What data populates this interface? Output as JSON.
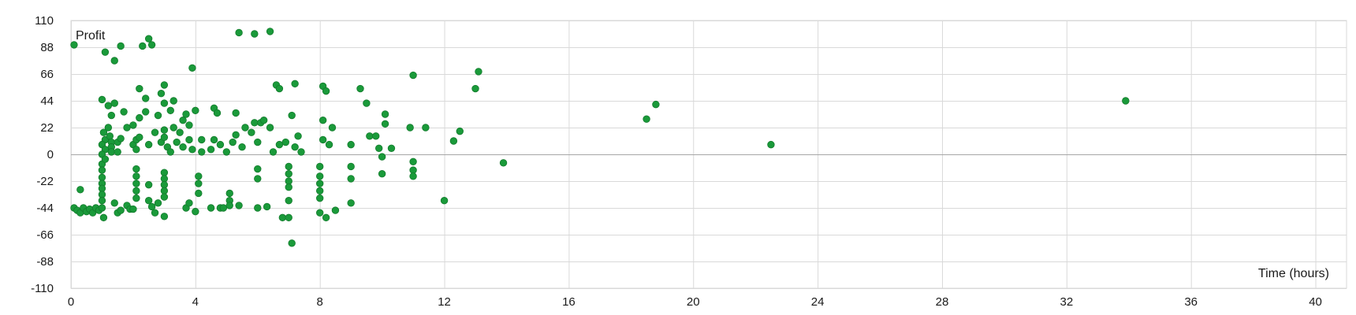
{
  "chart_data": {
    "type": "scatter",
    "xlabel": "Time (hours)",
    "ylabel": "Profit",
    "xlim": [
      0,
      41
    ],
    "ylim": [
      -110,
      110
    ],
    "x_ticks": [
      0,
      4,
      8,
      12,
      16,
      20,
      24,
      28,
      32,
      36,
      40
    ],
    "y_ticks": [
      -110,
      -88,
      -66,
      -44,
      -22,
      0,
      22,
      44,
      66,
      88,
      110
    ],
    "grid": true,
    "colors": {
      "marker": "#1a9a3a",
      "grid": "#d9d9d9",
      "zero_line": "#a6a6a6"
    },
    "series": [
      {
        "points": [
          [
            0.1,
            90
          ],
          [
            1.1,
            84
          ],
          [
            1.4,
            77
          ],
          [
            1.6,
            89
          ],
          [
            2.3,
            89
          ],
          [
            2.5,
            95
          ],
          [
            2.6,
            90
          ],
          [
            5.4,
            100
          ],
          [
            5.9,
            99
          ],
          [
            6.4,
            101
          ],
          [
            3.9,
            71
          ],
          [
            0.3,
            -29
          ],
          [
            0.1,
            -44
          ],
          [
            0.2,
            -46
          ],
          [
            0.3,
            -48
          ],
          [
            0.4,
            -44
          ],
          [
            0.5,
            -47
          ],
          [
            0.6,
            -45
          ],
          [
            0.7,
            -48
          ],
          [
            0.8,
            -44
          ],
          [
            0.9,
            -46
          ],
          [
            1.0,
            -44
          ],
          [
            1.05,
            -52
          ],
          [
            1.0,
            -8
          ],
          [
            1.0,
            -13
          ],
          [
            1.0,
            -19
          ],
          [
            1.0,
            -24
          ],
          [
            1.0,
            -28
          ],
          [
            1.0,
            -33
          ],
          [
            1.0,
            -38
          ],
          [
            1.0,
            45
          ],
          [
            1.05,
            18
          ],
          [
            1.1,
            12
          ],
          [
            1.0,
            8
          ],
          [
            1.1,
            4
          ],
          [
            1.0,
            0
          ],
          [
            1.1,
            -4
          ],
          [
            1.2,
            40
          ],
          [
            1.3,
            32
          ],
          [
            1.2,
            22
          ],
          [
            1.25,
            15
          ],
          [
            1.3,
            10
          ],
          [
            1.3,
            6
          ],
          [
            1.3,
            2
          ],
          [
            1.4,
            42
          ],
          [
            1.5,
            10
          ],
          [
            1.5,
            2
          ],
          [
            1.4,
            -40
          ],
          [
            1.5,
            -48
          ],
          [
            1.6,
            -46
          ],
          [
            1.6,
            13
          ],
          [
            1.7,
            35
          ],
          [
            1.8,
            22
          ],
          [
            1.8,
            -42
          ],
          [
            1.9,
            -45
          ],
          [
            2.0,
            8
          ],
          [
            2.0,
            -45
          ],
          [
            2.0,
            24
          ],
          [
            2.1,
            12
          ],
          [
            2.1,
            4
          ],
          [
            2.1,
            -12
          ],
          [
            2.1,
            -18
          ],
          [
            2.1,
            -24
          ],
          [
            2.1,
            -30
          ],
          [
            2.1,
            -36
          ],
          [
            2.2,
            54
          ],
          [
            2.2,
            30
          ],
          [
            2.2,
            14
          ],
          [
            2.4,
            46
          ],
          [
            2.4,
            35
          ],
          [
            2.5,
            8
          ],
          [
            2.5,
            -25
          ],
          [
            2.5,
            -38
          ],
          [
            2.6,
            -43
          ],
          [
            2.7,
            -48
          ],
          [
            2.7,
            18
          ],
          [
            2.8,
            32
          ],
          [
            2.8,
            -40
          ],
          [
            2.9,
            50
          ],
          [
            2.9,
            10
          ],
          [
            3.0,
            57
          ],
          [
            3.0,
            42
          ],
          [
            3.0,
            20
          ],
          [
            3.0,
            14
          ],
          [
            3.1,
            6
          ],
          [
            3.0,
            -15
          ],
          [
            3.0,
            -20
          ],
          [
            3.0,
            -25
          ],
          [
            3.0,
            -30
          ],
          [
            3.0,
            -35
          ],
          [
            3.0,
            -51
          ],
          [
            3.2,
            36
          ],
          [
            3.2,
            2
          ],
          [
            3.3,
            44
          ],
          [
            3.3,
            22
          ],
          [
            3.4,
            10
          ],
          [
            3.5,
            18
          ],
          [
            3.6,
            28
          ],
          [
            3.6,
            6
          ],
          [
            3.7,
            33
          ],
          [
            3.7,
            -44
          ],
          [
            3.8,
            24
          ],
          [
            3.8,
            12
          ],
          [
            3.8,
            -40
          ],
          [
            3.9,
            4
          ],
          [
            4.0,
            36
          ],
          [
            4.0,
            -47
          ],
          [
            4.1,
            -18
          ],
          [
            4.1,
            -24
          ],
          [
            4.1,
            -32
          ],
          [
            4.2,
            12
          ],
          [
            4.2,
            2
          ],
          [
            4.5,
            4
          ],
          [
            4.5,
            -44
          ],
          [
            4.6,
            38
          ],
          [
            4.6,
            12
          ],
          [
            4.7,
            34
          ],
          [
            4.8,
            8
          ],
          [
            4.8,
            -44
          ],
          [
            4.9,
            -44
          ],
          [
            5.0,
            2
          ],
          [
            5.1,
            -32
          ],
          [
            5.1,
            -38
          ],
          [
            5.1,
            -42
          ],
          [
            5.2,
            10
          ],
          [
            5.3,
            16
          ],
          [
            5.3,
            34
          ],
          [
            5.4,
            -42
          ],
          [
            5.5,
            6
          ],
          [
            5.6,
            22
          ],
          [
            5.8,
            18
          ],
          [
            5.9,
            26
          ],
          [
            6.0,
            10
          ],
          [
            6.0,
            -12
          ],
          [
            6.0,
            -20
          ],
          [
            6.0,
            -44
          ],
          [
            6.1,
            26
          ],
          [
            6.2,
            28
          ],
          [
            6.3,
            -43
          ],
          [
            6.4,
            22
          ],
          [
            6.5,
            2
          ],
          [
            6.6,
            57
          ],
          [
            6.7,
            54
          ],
          [
            6.7,
            8
          ],
          [
            6.8,
            -52
          ],
          [
            6.9,
            10
          ],
          [
            7.0,
            -38
          ],
          [
            7.0,
            -52
          ],
          [
            7.0,
            -10
          ],
          [
            7.0,
            -16
          ],
          [
            7.0,
            -22
          ],
          [
            7.0,
            -27
          ],
          [
            7.1,
            -73
          ],
          [
            7.1,
            32
          ],
          [
            7.2,
            58
          ],
          [
            7.2,
            6
          ],
          [
            7.3,
            15
          ],
          [
            7.4,
            2
          ],
          [
            8.0,
            -10
          ],
          [
            8.0,
            -18
          ],
          [
            8.0,
            -24
          ],
          [
            8.0,
            -30
          ],
          [
            8.0,
            -36
          ],
          [
            8.0,
            -48
          ],
          [
            8.1,
            56
          ],
          [
            8.1,
            28
          ],
          [
            8.1,
            12
          ],
          [
            8.2,
            52
          ],
          [
            8.2,
            -52
          ],
          [
            8.3,
            8
          ],
          [
            8.4,
            22
          ],
          [
            8.5,
            -46
          ],
          [
            9.0,
            -10
          ],
          [
            9.0,
            -20
          ],
          [
            9.0,
            -40
          ],
          [
            9.0,
            8
          ],
          [
            9.3,
            54
          ],
          [
            9.5,
            42
          ],
          [
            9.6,
            15
          ],
          [
            9.8,
            15
          ],
          [
            9.9,
            5
          ],
          [
            10.0,
            -2
          ],
          [
            10.0,
            -16
          ],
          [
            10.1,
            33
          ],
          [
            10.1,
            25
          ],
          [
            10.3,
            5
          ],
          [
            10.9,
            22
          ],
          [
            11.0,
            65
          ],
          [
            11.0,
            -6
          ],
          [
            11.0,
            -13
          ],
          [
            11.0,
            -18
          ],
          [
            11.4,
            22
          ],
          [
            12.0,
            -38
          ],
          [
            12.3,
            11
          ],
          [
            12.5,
            19
          ],
          [
            13.0,
            54
          ],
          [
            13.1,
            68
          ],
          [
            13.9,
            -7
          ],
          [
            18.5,
            29
          ],
          [
            18.8,
            41
          ],
          [
            22.5,
            8
          ],
          [
            33.9,
            44
          ]
        ]
      }
    ]
  }
}
